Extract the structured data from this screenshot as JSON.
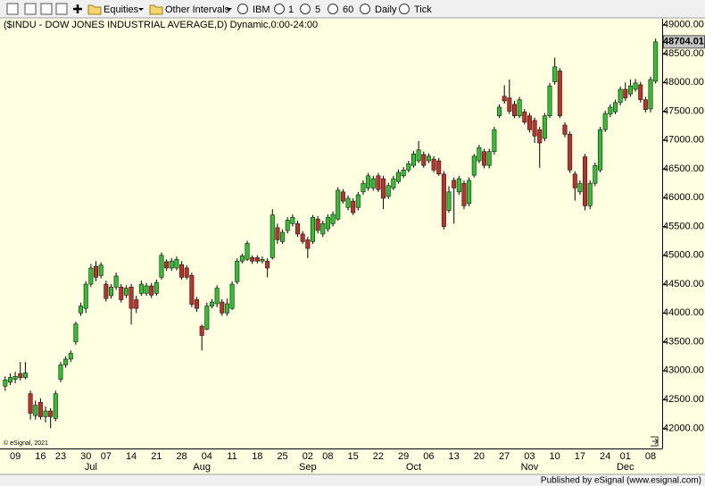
{
  "toolbar": {
    "items": [
      "Equities",
      "Other Intervals",
      "IBM",
      "1",
      "5",
      "60",
      "Daily",
      "Tick"
    ]
  },
  "footer": "Published by eSignal (www.esignal.com)",
  "chart_data": {
    "type": "candlestick",
    "title": "($INDU - DOW JONES INDUSTRIAL AVERAGE,D) Dynamic,0:00-24:00",
    "copyright": "© eSignal, 2021",
    "up_color": "#2fc12f",
    "down_color": "#c0302a",
    "grid": false,
    "categories": [
      null,
      null,
      "09",
      null,
      null,
      null,
      null,
      "16",
      null,
      null,
      null,
      "23",
      null,
      null,
      null,
      null,
      "30",
      null,
      null,
      null,
      "07",
      null,
      null,
      null,
      null,
      "14",
      null,
      null,
      null,
      null,
      "21",
      null,
      null,
      null,
      null,
      "28",
      null,
      null,
      null,
      null,
      "04",
      null,
      null,
      null,
      null,
      "11",
      null,
      null,
      null,
      null,
      "18",
      null,
      null,
      null,
      null,
      "25",
      null,
      null,
      null,
      null,
      "02",
      null,
      null,
      null,
      "08",
      null,
      null,
      null,
      null,
      "15",
      null,
      null,
      null,
      null,
      "22",
      null,
      null,
      null,
      null,
      "29",
      null,
      null,
      null,
      null,
      "06",
      null,
      null,
      null,
      null,
      "13",
      null,
      null,
      null,
      null,
      "20",
      null,
      null,
      null,
      null,
      "27",
      null,
      null,
      null,
      null,
      "03",
      null,
      null,
      null,
      null,
      "10",
      null,
      null,
      null,
      null,
      "17",
      null,
      null,
      null,
      null,
      "24",
      null,
      null,
      null,
      "01",
      null,
      null,
      null,
      null,
      "08",
      null
    ],
    "months": [
      {
        "label": "Jul",
        "start": 17
      },
      {
        "label": "Aug",
        "start": 39
      },
      {
        "label": "Sep",
        "start": 60
      },
      {
        "label": "Oct",
        "start": 81
      },
      {
        "label": "Nov",
        "start": 104
      },
      {
        "label": "Dec",
        "start": 123
      }
    ],
    "open": [
      42730,
      42800,
      42850,
      42950,
      42880,
      42600,
      42220,
      42450,
      42200,
      42300,
      42170,
      42850,
      43100,
      43200,
      43500,
      44000,
      44080,
      44500,
      44810,
      44650,
      44500,
      44300,
      44450,
      44450,
      44310,
      44450,
      44230,
      44340,
      44340,
      44470,
      44340,
      44620,
      44890,
      44780,
      44780,
      44840,
      44780,
      44650,
      44230,
      43770,
      43720,
      44120,
      44160,
      44190,
      44000,
      44080,
      44540,
      44900,
      44930,
      44960,
      44960,
      44900,
      44900,
      44960,
      45480,
      45240,
      45430,
      45550,
      45550,
      45370,
      45270,
      45240,
      45630,
      45370,
      45460,
      45550,
      45630,
      46100,
      45830,
      45940,
      45830,
      46100,
      46170,
      46170,
      46380,
      46330,
      46020,
      46170,
      46280,
      46380,
      46480,
      46560,
      46640,
      46750,
      46640,
      46670,
      46640,
      46410,
      45780,
      46300,
      46100,
      46250,
      45900,
      46390,
      46640,
      46800,
      46560,
      46800,
      47420,
      47760,
      47730,
      47620,
      47420,
      47490,
      47420,
      47340,
      47180,
      47030,
      47420,
      48010,
      48200,
      47260,
      47100,
      46410,
      46100,
      46710,
      45860,
      46250,
      46480,
      47180,
      47450,
      47490,
      47650,
      47880,
      47800,
      47880,
      47960,
      47700,
      47540,
      48020
    ],
    "high": [
      42900,
      42950,
      42980,
      43150,
      43150,
      42650,
      42480,
      42520,
      42380,
      42350,
      42650,
      43150,
      43250,
      43350,
      43850,
      44180,
      44550,
      44850,
      44900,
      44880,
      44560,
      44500,
      44700,
      44500,
      44480,
      44500,
      44300,
      44560,
      44520,
      44520,
      44580,
      45050,
      44930,
      44950,
      44980,
      44900,
      44830,
      44700,
      44280,
      43800,
      44180,
      44240,
      44480,
      44240,
      44250,
      44550,
      44950,
      45030,
      45250,
      45000,
      45000,
      44980,
      44950,
      45800,
      45550,
      45450,
      45660,
      45710,
      45600,
      45420,
      45320,
      45700,
      45680,
      45600,
      45710,
      45760,
      46180,
      46150,
      46040,
      45990,
      46100,
      46300,
      46430,
      46380,
      46430,
      46380,
      46260,
      46380,
      46490,
      46530,
      46640,
      46810,
      46980,
      46800,
      46770,
      46720,
      46690,
      46460,
      46200,
      46350,
      46380,
      46300,
      46350,
      46760,
      46920,
      46850,
      46850,
      47230,
      47620,
      47950,
      48050,
      47680,
      47750,
      47540,
      47470,
      47390,
      47230,
      47470,
      47990,
      48430,
      48250,
      47310,
      47150,
      46460,
      46300,
      46760,
      46300,
      46610,
      47230,
      47510,
      47620,
      47700,
      47930,
      48000,
      48050,
      48060,
      48010,
      47750,
      48100,
      48760
    ],
    "low": [
      42650,
      42750,
      42780,
      42830,
      42850,
      42150,
      42150,
      42150,
      42100,
      42000,
      42120,
      42800,
      43050,
      43150,
      43450,
      43950,
      44000,
      44450,
      44550,
      44600,
      44200,
      44250,
      44400,
      44180,
      44260,
      43800,
      44000,
      44300,
      44300,
      44260,
      44300,
      44580,
      44730,
      44730,
      44740,
      44580,
      44580,
      44100,
      44020,
      43350,
      43700,
      44080,
      44100,
      43950,
      43950,
      44050,
      44500,
      44860,
      44900,
      44850,
      44860,
      44860,
      44620,
      44930,
      45200,
      45200,
      45380,
      45500,
      45320,
      45200,
      44950,
      45200,
      45380,
      45320,
      45410,
      45500,
      45600,
      45900,
      45780,
      45700,
      45780,
      46050,
      46120,
      46120,
      46100,
      45800,
      45980,
      46130,
      46240,
      46340,
      46440,
      46520,
      46600,
      46520,
      46600,
      46440,
      46380,
      45450,
      45740,
      45550,
      46050,
      45800,
      45850,
      46350,
      46600,
      46510,
      46510,
      46750,
      47380,
      47630,
      47450,
      47380,
      47380,
      47270,
      47130,
      46950,
      46520,
      46980,
      47380,
      47960,
      47380,
      47050,
      46430,
      45950,
      46050,
      45780,
      45800,
      46200,
      46440,
      47140,
      47400,
      47450,
      47600,
      47680,
      47750,
      47840,
      47650,
      47480,
      47480,
      47980
    ],
    "close": [
      42840,
      42880,
      42900,
      42880,
      42960,
      42260,
      42400,
      42200,
      42300,
      42200,
      42600,
      43100,
      43200,
      43300,
      43810,
      44120,
      44500,
      44780,
      44620,
      44830,
      44250,
      44450,
      44640,
      44230,
      44430,
      44080,
      44080,
      44500,
      44470,
      44310,
      44530,
      45000,
      44780,
      44900,
      44930,
      44620,
      44620,
      44150,
      44080,
      43610,
      44120,
      44190,
      44430,
      44000,
      44160,
      44500,
      44900,
      44990,
      45210,
      44900,
      44900,
      44930,
      44780,
      45700,
      45270,
      45400,
      45610,
      45660,
      45370,
      45240,
      45120,
      45660,
      45430,
      45550,
      45660,
      45710,
      46130,
      45940,
      45990,
      45740,
      46050,
      46250,
      46380,
      46330,
      46140,
      45990,
      46210,
      46330,
      46440,
      46480,
      46590,
      46760,
      46830,
      46560,
      46720,
      46480,
      46410,
      45500,
      46100,
      46170,
      46330,
      45860,
      46300,
      46720,
      46870,
      46560,
      46800,
      47180,
      47570,
      47680,
      47500,
      47420,
      47700,
      47310,
      47180,
      47070,
      46950,
      47420,
      47940,
      48270,
      47420,
      47100,
      46480,
      46170,
      46250,
      45860,
      46250,
      46560,
      47180,
      47460,
      47570,
      47650,
      47880,
      47730,
      47940,
      47990,
      47700,
      47530,
      48050,
      48704.01
    ],
    "ylim": [
      41680,
      49120
    ],
    "yticks": [
      {
        "value": 42000,
        "label": "42000.00"
      },
      {
        "value": 42500,
        "label": "42500.00"
      },
      {
        "value": 43000,
        "label": "43000.00"
      },
      {
        "value": 43500,
        "label": "43500.00"
      },
      {
        "value": 44000,
        "label": "44000.00"
      },
      {
        "value": 44500,
        "label": "44500.00"
      },
      {
        "value": 45000,
        "label": "45000.00"
      },
      {
        "value": 45500,
        "label": "45500.00"
      },
      {
        "value": 46000,
        "label": "46000.00"
      },
      {
        "value": 46500,
        "label": "46500.00"
      },
      {
        "value": 47000,
        "label": "47000.00"
      },
      {
        "value": 47500,
        "label": "47500.00"
      },
      {
        "value": 48000,
        "label": "48000.00"
      },
      {
        "value": 48500,
        "label": "48500.00"
      },
      {
        "value": 49000,
        "label": "49000.00"
      }
    ]
  }
}
